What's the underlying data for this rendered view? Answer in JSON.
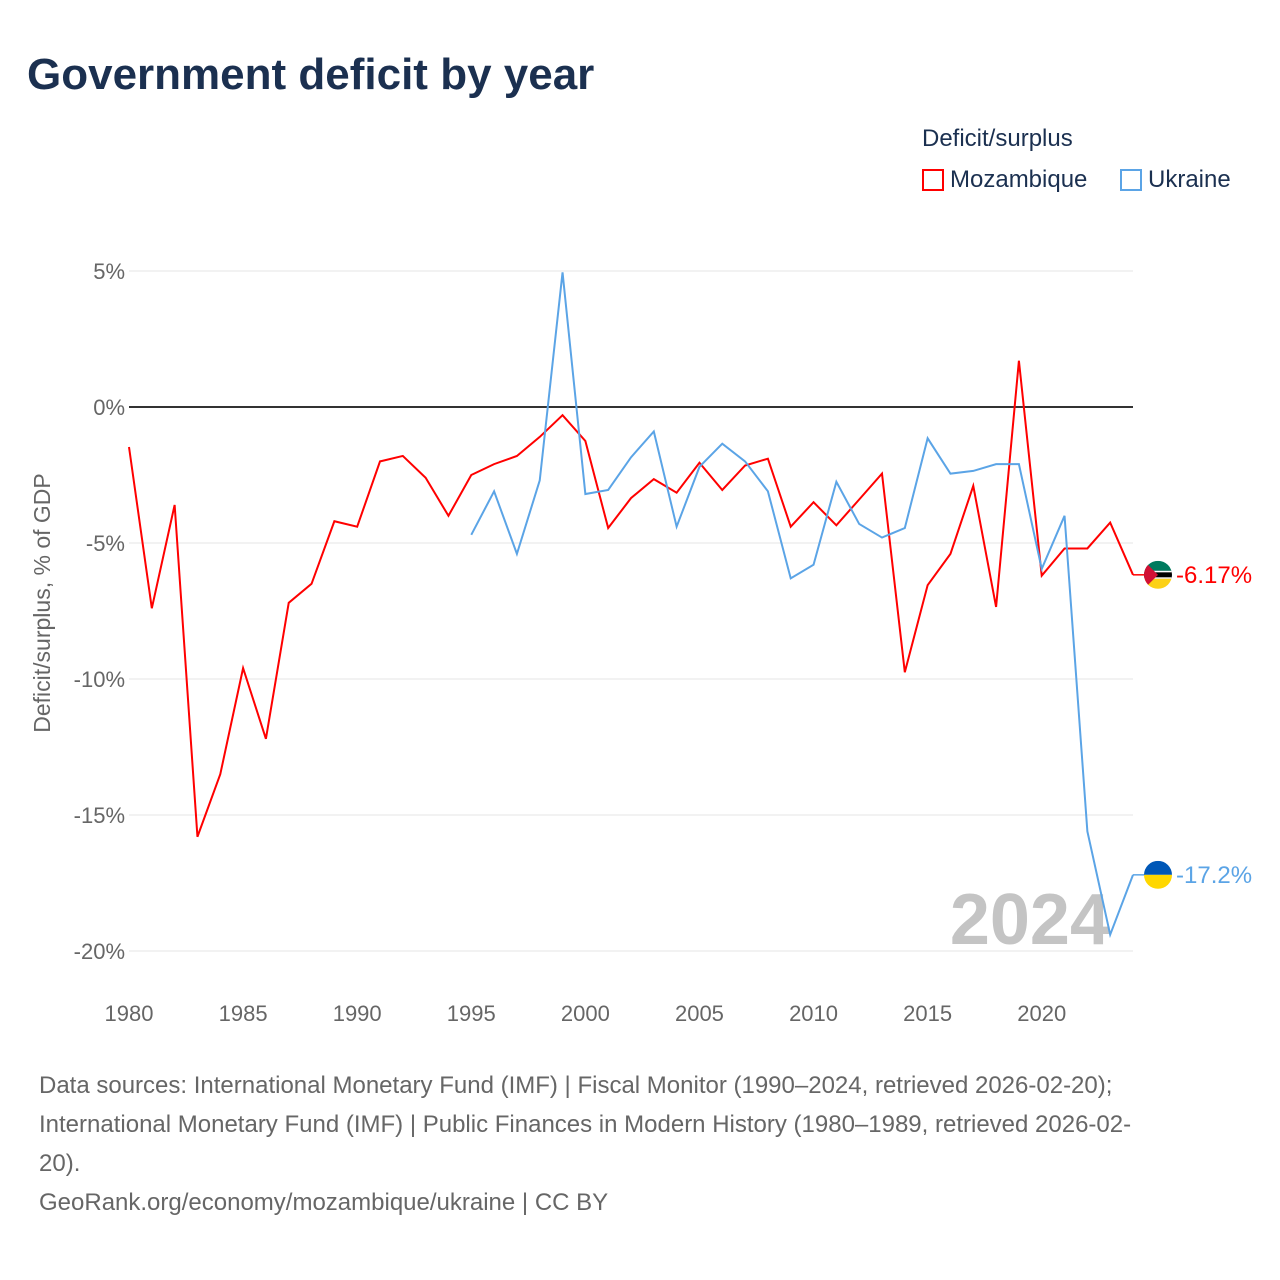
{
  "title": "Government deficit by year",
  "legend": {
    "title": "Deficit/surplus",
    "items": [
      "Mozambique",
      "Ukraine"
    ]
  },
  "watermark_year": "2024",
  "sources": {
    "line1": "Data sources: International Monetary Fund (IMF) | Fiscal Monitor (1990–2024, retrieved 2026-02-20);",
    "line2": "International Monetary Fund (IMF) | Public Finances in Modern History (1980–1989, retrieved 2026-02-",
    "line3": "20).",
    "line4": "GeoRank.org/economy/mozambique/ukraine | CC BY"
  },
  "chart_data": {
    "type": "line",
    "title": "Government deficit by year",
    "xlabel": "",
    "ylabel": "Deficit/surplus, % of GDP",
    "xlim": [
      1980,
      2024
    ],
    "ylim": [
      -20,
      5
    ],
    "xticks": [
      1980,
      1985,
      1990,
      1995,
      2000,
      2005,
      2010,
      2015,
      2020
    ],
    "yticks": [
      {
        "v": 5,
        "label": "5%"
      },
      {
        "v": 0,
        "label": "0%"
      },
      {
        "v": -5,
        "label": "-5%"
      },
      {
        "v": -10,
        "label": "-10%"
      },
      {
        "v": -15,
        "label": "-15%"
      },
      {
        "v": -20,
        "label": "-20%"
      }
    ],
    "series": [
      {
        "name": "Mozambique",
        "color": "#ff0000",
        "end_label": "-6.17%",
        "start": 1980,
        "values": [
          -1.47,
          -7.4,
          -3.6,
          -15.8,
          -13.5,
          -9.6,
          -12.2,
          -7.2,
          -6.5,
          -4.2,
          -4.4,
          -2.0,
          -1.8,
          -2.6,
          -4.0,
          -2.5,
          -2.1,
          -1.8,
          -1.1,
          -0.3,
          -1.25,
          -4.45,
          -3.35,
          -2.65,
          -3.15,
          -2.05,
          -3.05,
          -2.15,
          -1.9,
          -4.4,
          -3.5,
          -4.35,
          -3.4,
          -2.45,
          -9.75,
          -6.55,
          -5.4,
          -2.9,
          -7.35,
          1.7,
          -6.2,
          -5.2,
          -5.2,
          -4.25,
          -6.17
        ]
      },
      {
        "name": "Ukraine",
        "color": "#5ba4e6",
        "end_label": "-17.2%",
        "start": 1995,
        "values": [
          -4.7,
          -3.1,
          -5.4,
          -2.7,
          4.95,
          -3.2,
          -3.05,
          -1.85,
          -0.9,
          -4.4,
          -2.2,
          -1.35,
          -2.0,
          -3.1,
          -6.3,
          -5.8,
          -2.75,
          -4.3,
          -4.8,
          -4.45,
          -1.15,
          -2.45,
          -2.35,
          -2.1,
          -2.1,
          -5.95,
          -4.0,
          -15.6,
          -19.4,
          -17.2
        ]
      }
    ]
  }
}
